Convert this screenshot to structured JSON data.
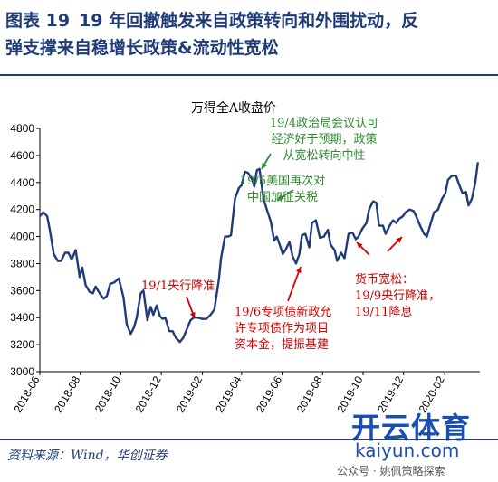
{
  "figure": {
    "label": "图表 19",
    "title_line1": "19 年回撤触发来自政策转向和外围扰动，反",
    "title_line2": "弹支撑来自稳增长政策&流动性宽松",
    "source": "资料来源：Wind，华创证券",
    "watermark_cn": "开云体育",
    "watermark_url": "kaiyun.com",
    "wechat": "公众号 · 姚佩策略探索"
  },
  "colors": {
    "line": "#1f3c78",
    "title": "#1f3c78",
    "annotation_red": "#d40000",
    "annotation_green": "#2e8b2e"
  },
  "chart_data": {
    "type": "line",
    "title": "万得全A收盘价",
    "xlabel": "",
    "ylabel": "",
    "ylim": [
      3000,
      4800
    ],
    "yticks": [
      3000,
      3200,
      3400,
      3600,
      3800,
      4000,
      4200,
      4400,
      4600,
      4800
    ],
    "xlim": [
      "2018-06-01",
      "2020-03-25"
    ],
    "xticks": [
      "2018-06",
      "2018-08",
      "2018-10",
      "2018-12",
      "2019-02",
      "2019-04",
      "2019-06",
      "2019-08",
      "2019-10",
      "2019-12",
      "2020-02"
    ],
    "grid": false,
    "legend": "none",
    "series": [
      {
        "x": [
          "2018-06-01",
          "2018-06-06",
          "2018-06-12",
          "2018-06-16",
          "2018-06-22",
          "2018-06-28",
          "2018-07-03",
          "2018-07-09",
          "2018-07-14",
          "2018-07-19",
          "2018-07-25",
          "2018-07-31",
          "2018-08-04",
          "2018-08-09",
          "2018-08-15",
          "2018-08-20",
          "2018-08-24",
          "2018-08-30",
          "2018-09-05",
          "2018-09-10",
          "2018-09-15",
          "2018-09-21",
          "2018-09-28",
          "2018-10-05",
          "2018-10-10",
          "2018-10-16",
          "2018-10-21",
          "2018-10-25",
          "2018-10-31",
          "2018-11-04",
          "2018-11-10",
          "2018-11-15",
          "2018-11-19",
          "2018-11-24",
          "2018-11-29",
          "2018-12-03",
          "2018-12-07",
          "2018-12-13",
          "2018-12-18",
          "2018-12-23",
          "2018-12-29",
          "2019-01-03",
          "2019-01-09",
          "2019-01-14",
          "2019-01-19",
          "2019-01-25",
          "2019-02-01",
          "2019-02-07",
          "2019-02-13",
          "2019-02-19",
          "2019-02-26",
          "2019-03-01",
          "2019-03-07",
          "2019-03-12",
          "2019-03-16",
          "2019-03-22",
          "2019-03-28",
          "2019-04-01",
          "2019-04-06",
          "2019-04-11",
          "2019-04-17",
          "2019-04-20",
          "2019-04-24",
          "2019-04-28",
          "2019-05-04",
          "2019-05-09",
          "2019-05-15",
          "2019-05-20",
          "2019-05-24",
          "2019-05-29",
          "2019-06-02",
          "2019-06-06",
          "2019-06-12",
          "2019-06-17",
          "2019-06-22",
          "2019-06-27",
          "2019-07-01",
          "2019-07-06",
          "2019-07-12",
          "2019-07-16",
          "2019-07-22",
          "2019-07-28",
          "2019-08-03",
          "2019-08-09",
          "2019-08-13",
          "2019-08-19",
          "2019-08-23",
          "2019-08-29",
          "2019-09-03",
          "2019-09-09",
          "2019-09-15",
          "2019-09-20",
          "2019-09-24",
          "2019-09-30",
          "2019-10-06",
          "2019-10-10",
          "2019-10-16",
          "2019-10-21",
          "2019-10-25",
          "2019-10-31",
          "2019-11-04",
          "2019-11-10",
          "2019-11-15",
          "2019-11-20",
          "2019-11-24",
          "2019-11-30",
          "2019-12-04",
          "2019-12-10",
          "2019-12-16",
          "2019-12-20",
          "2019-12-26",
          "2020-01-01",
          "2020-01-05",
          "2020-01-11",
          "2020-01-16",
          "2020-01-22",
          "2020-01-28",
          "2020-02-02",
          "2020-02-06",
          "2020-02-12",
          "2020-02-18",
          "2020-02-23",
          "2020-02-28",
          "2020-03-04",
          "2020-03-08",
          "2020-03-13",
          "2020-03-18",
          "2020-03-22"
        ],
        "values": [
          4150,
          4180,
          4150,
          4050,
          3870,
          3820,
          3820,
          3880,
          3880,
          3830,
          3900,
          3700,
          3770,
          3640,
          3590,
          3580,
          3630,
          3580,
          3540,
          3560,
          3650,
          3660,
          3690,
          3550,
          3350,
          3280,
          3330,
          3400,
          3580,
          3600,
          3380,
          3480,
          3420,
          3490,
          3410,
          3390,
          3400,
          3300,
          3300,
          3250,
          3220,
          3250,
          3320,
          3380,
          3400,
          3400,
          3390,
          3390,
          3420,
          3460,
          3690,
          3840,
          4000,
          4000,
          4010,
          4280,
          4360,
          4380,
          4480,
          4470,
          4420,
          4370,
          4490,
          4500,
          4280,
          4200,
          4110,
          3970,
          4000,
          3930,
          3870,
          3900,
          3960,
          3850,
          3800,
          3870,
          4010,
          4020,
          3920,
          4100,
          4120,
          3990,
          4000,
          4050,
          3940,
          3900,
          3820,
          3880,
          3840,
          4020,
          4030,
          3980,
          4000,
          4060,
          4100,
          4200,
          4260,
          4250,
          4080,
          4080,
          4020,
          4080,
          4120,
          4100,
          4130,
          4150,
          4180,
          4200,
          4190,
          4150,
          4080,
          4020,
          4000,
          4100,
          4180,
          4200,
          4280,
          4320,
          4420,
          4450,
          4450,
          4380,
          4320,
          4330,
          4230,
          4280,
          4400,
          4550
        ]
      }
    ],
    "annotations": [
      {
        "id": "a1",
        "color": "green",
        "lines": [
          "19/4政治局会议认可",
          "经济好于预期，政策",
          "从宽松转向中性"
        ]
      },
      {
        "id": "a2",
        "color": "green",
        "lines": [
          "19/5美国再次对",
          "中国加征关税"
        ]
      },
      {
        "id": "a3",
        "color": "red",
        "lines": [
          "19/1央行降准"
        ]
      },
      {
        "id": "a4",
        "color": "red",
        "lines": [
          "19/6专项债新政允",
          "许专项债作为项目",
          "资本金，提振基建"
        ]
      },
      {
        "id": "a5",
        "color": "red",
        "lines": [
          "货币宽松：",
          "19/9央行降准，",
          "19/11降息"
        ]
      }
    ]
  }
}
